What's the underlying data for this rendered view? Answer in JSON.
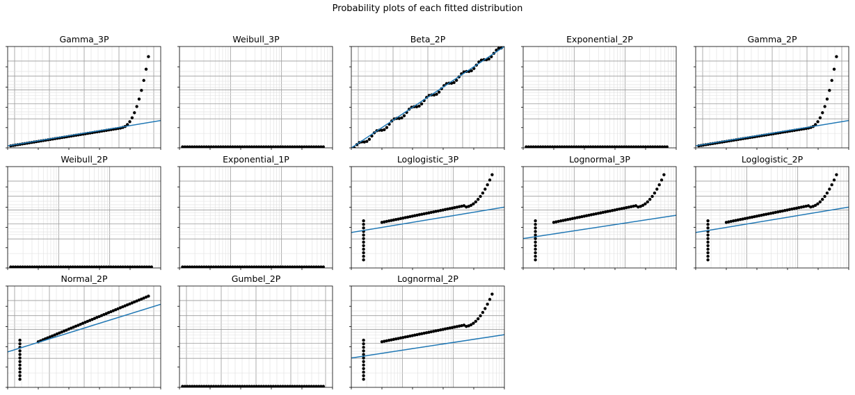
{
  "figure": {
    "title": "Probability plots of each fitted distribution"
  },
  "colors": {
    "points": "#000000",
    "fit_line": "#1f77b4",
    "grid_major": "#9a9a9a",
    "grid_minor": "#dedede",
    "axes": "#000000"
  },
  "chart_data": [
    {
      "type": "scatter",
      "title": "Gamma_3P",
      "grid": "true",
      "scale": "probability",
      "pattern": "rising-tail",
      "fit_line": [
        [
          0.0,
          0.02
        ],
        [
          1.0,
          0.27
        ]
      ],
      "tick_labels_shown": false
    },
    {
      "type": "scatter",
      "title": "Weibull_3P",
      "grid": "true",
      "scale": "probability",
      "pattern": "flat",
      "fit_line": null,
      "tick_labels_shown": false
    },
    {
      "type": "scatter",
      "title": "Beta_2P",
      "grid": "true",
      "scale": "probability",
      "pattern": "linear",
      "fit_line": [
        [
          0.0,
          0.0
        ],
        [
          1.0,
          1.0
        ]
      ],
      "tick_labels_shown": false
    },
    {
      "type": "scatter",
      "title": "Exponential_2P",
      "grid": "true",
      "scale": "probability",
      "pattern": "flat",
      "fit_line": null,
      "tick_labels_shown": false
    },
    {
      "type": "scatter",
      "title": "Gamma_2P",
      "grid": "true",
      "scale": "probability",
      "pattern": "rising-tail",
      "fit_line": [
        [
          0.0,
          0.02
        ],
        [
          1.0,
          0.27
        ]
      ],
      "tick_labels_shown": false
    },
    {
      "type": "scatter",
      "title": "Weibull_2P",
      "grid": "true",
      "scale": "probability",
      "pattern": "flat",
      "fit_line": null,
      "tick_labels_shown": false
    },
    {
      "type": "scatter",
      "title": "Exponential_1P",
      "grid": "true",
      "scale": "probability",
      "pattern": "flat",
      "fit_line": null,
      "tick_labels_shown": false
    },
    {
      "type": "scatter",
      "title": "Loglogistic_3P",
      "grid": "true",
      "scale": "probability",
      "pattern": "s-curve",
      "fit_line": [
        [
          0.0,
          0.35
        ],
        [
          1.0,
          0.6
        ]
      ],
      "tick_labels_shown": false
    },
    {
      "type": "scatter",
      "title": "Lognormal_3P",
      "grid": "true",
      "scale": "probability",
      "pattern": "s-curve",
      "fit_line": [
        [
          0.0,
          0.29
        ],
        [
          1.0,
          0.52
        ]
      ],
      "tick_labels_shown": false
    },
    {
      "type": "scatter",
      "title": "Loglogistic_2P",
      "grid": "true",
      "scale": "probability",
      "pattern": "s-curve",
      "fit_line": [
        [
          0.0,
          0.35
        ],
        [
          1.0,
          0.6
        ]
      ],
      "tick_labels_shown": false
    },
    {
      "type": "scatter",
      "title": "Normal_2P",
      "grid": "true",
      "scale": "probability",
      "pattern": "s-curve-linear",
      "fit_line": [
        [
          0.0,
          0.35
        ],
        [
          1.0,
          0.82
        ]
      ],
      "tick_labels_shown": false
    },
    {
      "type": "scatter",
      "title": "Gumbel_2P",
      "grid": "true",
      "scale": "probability",
      "pattern": "flat",
      "fit_line": null,
      "tick_labels_shown": false
    },
    {
      "type": "scatter",
      "title": "Lognormal_2P",
      "grid": "true",
      "scale": "probability",
      "pattern": "s-curve",
      "fit_line": [
        [
          0.0,
          0.29
        ],
        [
          1.0,
          0.52
        ]
      ],
      "tick_labels_shown": false
    }
  ]
}
